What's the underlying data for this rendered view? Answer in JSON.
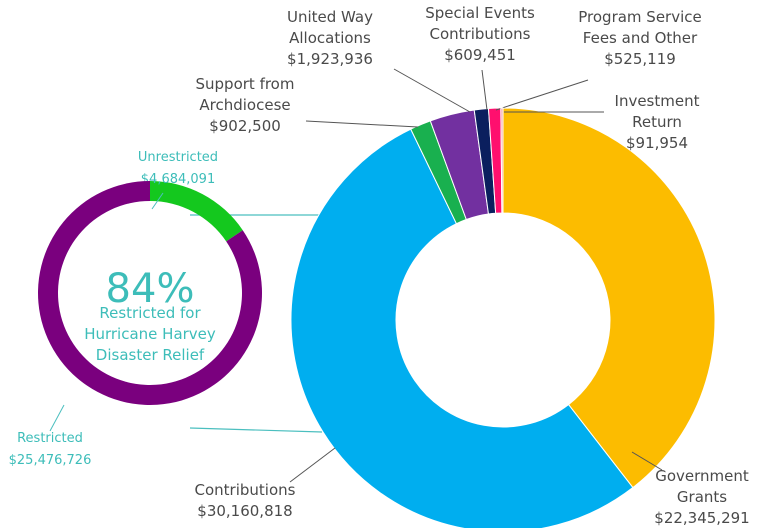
{
  "chart_data": [
    {
      "type": "donut",
      "categories": [
        "Government Grants",
        "Contributions",
        "Support from Archdiocese",
        "United Way Allocations",
        "Special Events Contributions",
        "Program Service Fees and Other",
        "Investment Return"
      ],
      "values": [
        22345291,
        30160818,
        902500,
        1923936,
        609451,
        525119,
        91954
      ],
      "value_labels": [
        "$22,345,291",
        "$30,160,818",
        "$902,500",
        "$1,923,936",
        "$609,451",
        "$525,119",
        "$91,954"
      ],
      "colors": [
        "#fcbc00",
        "#00aeef",
        "#19b04f",
        "#7230a0",
        "#0b1f5e",
        "#ff0f6e",
        "#f4a0a0"
      ]
    },
    {
      "type": "donut",
      "categories": [
        "Unrestricted",
        "Restricted"
      ],
      "values": [
        4684091,
        25476726
      ],
      "value_labels": [
        "$4,684,091",
        "$25,476,726"
      ],
      "colors": [
        "#14c81e",
        "#7a007e"
      ],
      "center_text": "84%",
      "center_caption": "Restricted for Hurricane Harvey Disaster Relief"
    }
  ]
}
